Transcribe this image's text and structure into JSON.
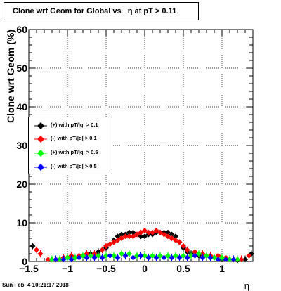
{
  "title": "Clone wrt Geom for Global vs   η at pT > 0.11",
  "footer": "Sun Feb  4 10:21:17 2018",
  "chart_data": {
    "type": "scatter",
    "title": "Clone wrt Geom for Global vs   η at pT > 0.11",
    "xlabel": "η",
    "ylabel": "Clone wrt Geom (%)",
    "xlim": [
      -1.5,
      1.4
    ],
    "ylim": [
      0,
      60
    ],
    "x_ticks": [
      "−1.5",
      "−1",
      "−0.5",
      "0",
      "0.5",
      "1"
    ],
    "y_ticks": [
      "0",
      "10",
      "20",
      "30",
      "40",
      "50",
      "60"
    ],
    "grid": true,
    "legend_position": "left-middle",
    "series": [
      {
        "name": "(+) with pT/|q| > 0.1",
        "color": "#000000",
        "x": [
          -1.45,
          -1.2,
          -1.1,
          -1.0,
          -0.9,
          -0.8,
          -0.7,
          -0.6,
          -0.5,
          -0.45,
          -0.4,
          -0.35,
          -0.3,
          -0.25,
          -0.2,
          -0.15,
          -0.1,
          -0.05,
          0.0,
          0.05,
          0.1,
          0.15,
          0.2,
          0.25,
          0.3,
          0.35,
          0.4,
          0.45,
          0.5,
          0.55,
          0.6,
          0.7,
          0.8,
          0.9,
          1.0,
          1.1,
          1.2,
          1.3,
          1.38
        ],
        "y": [
          4,
          0.5,
          0.5,
          1,
          1,
          1.5,
          2,
          2.5,
          3.5,
          4.5,
          5.5,
          6.5,
          7,
          7,
          7.5,
          7.5,
          7,
          6.5,
          6.5,
          7,
          7,
          7.5,
          7.5,
          7.5,
          7.5,
          7,
          6.5,
          5,
          3.5,
          2.5,
          2,
          1.5,
          1.5,
          1,
          0.5,
          0.5,
          0.3,
          0.5,
          2
        ]
      },
      {
        "name": "(-) with pT/|q| > 0.1",
        "color": "#ff0000",
        "x": [
          -1.4,
          -1.35,
          -1.25,
          -1.15,
          -1.05,
          -0.95,
          -0.85,
          -0.75,
          -0.65,
          -0.55,
          -0.5,
          -0.45,
          -0.4,
          -0.35,
          -0.3,
          -0.25,
          -0.2,
          -0.15,
          -0.1,
          -0.05,
          0.0,
          0.05,
          0.1,
          0.15,
          0.2,
          0.25,
          0.3,
          0.35,
          0.4,
          0.45,
          0.5,
          0.55,
          0.65,
          0.75,
          0.85,
          0.95,
          1.05,
          1.15,
          1.25,
          1.35
        ],
        "y": [
          3,
          2,
          0.5,
          0.5,
          1,
          1.5,
          1.5,
          2,
          2,
          3,
          4,
          4.5,
          5,
          5.5,
          6,
          6.5,
          6.5,
          6.5,
          7,
          7.5,
          8,
          7.5,
          7.5,
          8,
          7.5,
          7,
          6.5,
          6,
          5.5,
          5,
          4,
          3,
          2.5,
          2,
          1.5,
          1.5,
          1,
          0.5,
          0.5,
          1.5
        ]
      },
      {
        "name": "(+) with pT/|q| > 0.5",
        "color": "#00ff00",
        "x": [
          -1.2,
          -1.1,
          -1.0,
          -0.9,
          -0.8,
          -0.7,
          -0.6,
          -0.5,
          -0.4,
          -0.3,
          -0.2,
          -0.1,
          0.0,
          0.1,
          0.2,
          0.3,
          0.4,
          0.5,
          0.6,
          0.7,
          0.8,
          0.9,
          1.0,
          1.1,
          1.2
        ],
        "y": [
          0.5,
          0.5,
          1,
          1,
          1.5,
          1.5,
          1.5,
          1.5,
          1.5,
          2,
          2,
          1.5,
          1.5,
          1.5,
          1.5,
          1.5,
          1.5,
          1.5,
          1.5,
          2,
          1.5,
          1,
          1,
          0.5,
          0.5
        ]
      },
      {
        "name": "(-) with pT/|q| > 0.5",
        "color": "#0000ff",
        "x": [
          -1.15,
          -1.05,
          -0.95,
          -0.85,
          -0.75,
          -0.65,
          -0.55,
          -0.45,
          -0.35,
          -0.25,
          -0.15,
          -0.05,
          0.05,
          0.15,
          0.25,
          0.35,
          0.45,
          0.55,
          0.65,
          0.75,
          0.85,
          0.95,
          1.05,
          1.15
        ],
        "y": [
          0.5,
          0.5,
          0.5,
          1,
          1,
          1,
          1,
          1.5,
          1,
          1.5,
          1,
          1.5,
          1,
          1,
          1,
          1,
          1,
          1,
          1.5,
          1,
          1,
          0.5,
          0.5,
          0.5
        ]
      }
    ]
  }
}
